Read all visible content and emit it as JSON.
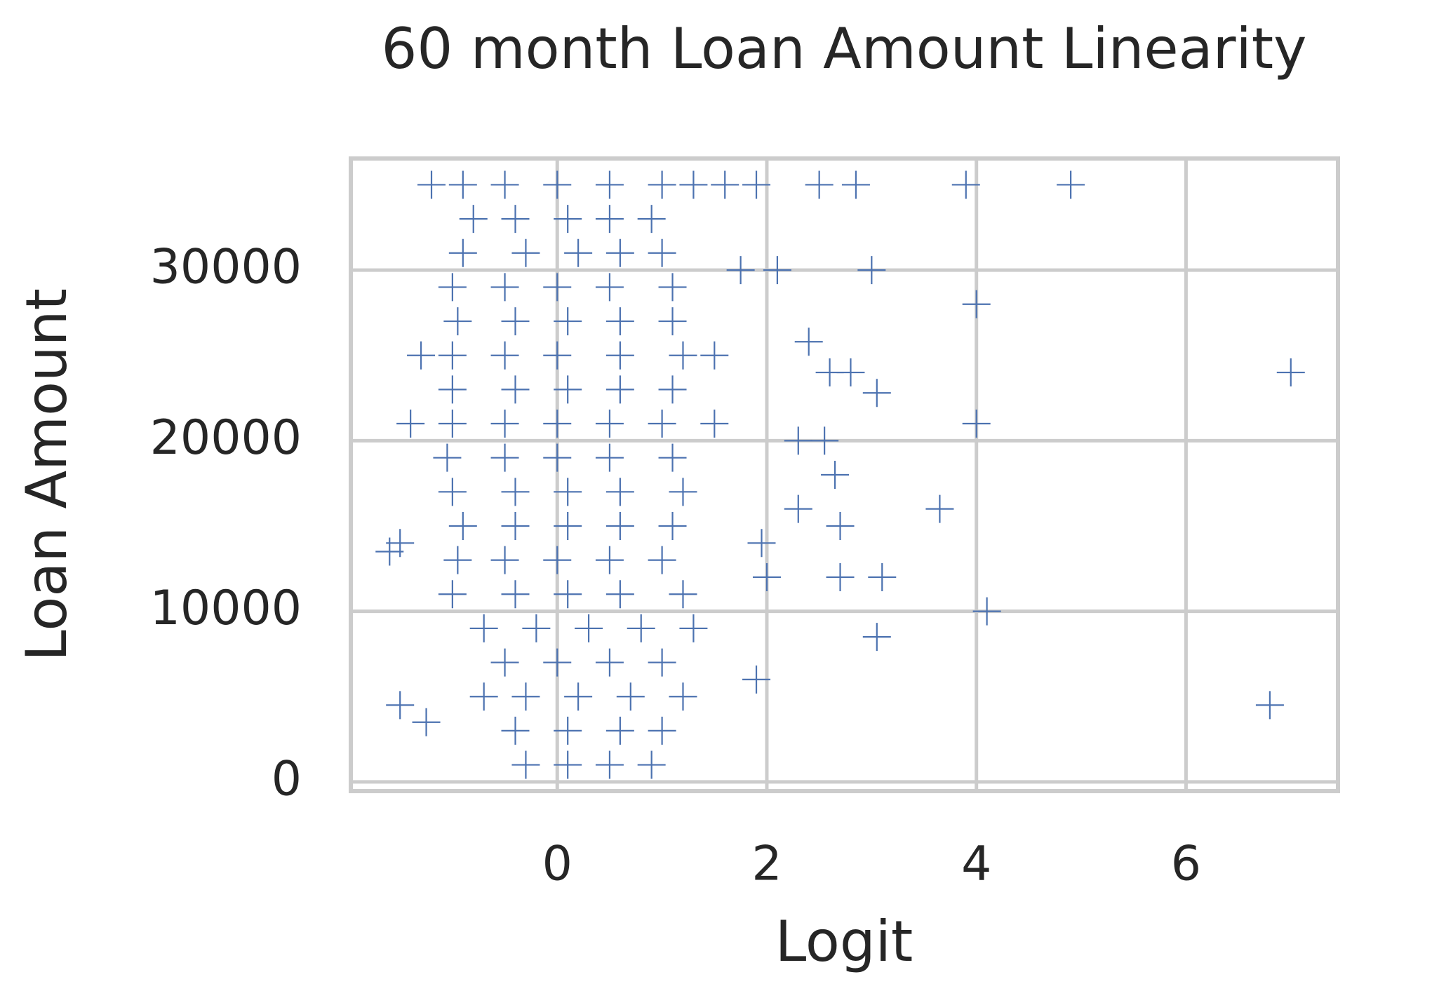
{
  "chart_data": {
    "type": "scatter",
    "title": "60 month Loan Amount Linearity",
    "x_label": "Logit",
    "y_label": "Loan Amount",
    "color": "#4c72b0",
    "marker": "plus",
    "grid": true,
    "xlim": [
      -1.97,
      7.45
    ],
    "ylim": [
      -540,
      36540
    ],
    "xticks": [
      0,
      2,
      4,
      6
    ],
    "yticks": [
      0,
      10000,
      20000,
      30000
    ],
    "x": [
      -0.9,
      -0.5,
      0,
      0.5,
      1.0,
      1.3,
      1.6,
      1.9,
      -0.8,
      -0.4,
      0.1,
      0.5,
      0.9,
      -0.9,
      -0.3,
      0.2,
      0.6,
      1.0,
      -1.0,
      -0.5,
      0,
      0.5,
      1.1,
      -0.95,
      -0.4,
      0.1,
      0.6,
      1.1,
      -1.0,
      -0.5,
      0,
      0.6,
      1.2,
      1.5,
      -1.0,
      -0.4,
      0.1,
      0.6,
      1.1,
      -1.0,
      -0.5,
      0,
      0.5,
      1.0,
      1.5,
      -1.05,
      -0.5,
      0,
      0.5,
      1.1,
      -1.0,
      -0.4,
      0.1,
      0.6,
      1.2,
      -0.9,
      -0.4,
      0.1,
      0.6,
      1.1,
      -0.95,
      -0.5,
      0,
      0.5,
      1.0,
      -1.0,
      -0.4,
      0.1,
      0.6,
      1.2,
      -0.7,
      -0.2,
      0.3,
      0.8,
      1.3,
      -0.5,
      0,
      0.5,
      1.0,
      -0.7,
      -0.3,
      0.2,
      0.7,
      1.2,
      -0.4,
      0.1,
      0.6,
      1.0,
      -0.3,
      0.1,
      0.5,
      0.9,
      4.9,
      3.9,
      7.0,
      6.8,
      4.0,
      4.0,
      3.65,
      4.1,
      3.05,
      3.1,
      2.7,
      2.7,
      2.65,
      3.0,
      3.05,
      2.8,
      2.6,
      2.4,
      2.3,
      2.55,
      2.3,
      2.0,
      1.95,
      1.9,
      1.75,
      2.1,
      2.85,
      2.5,
      -1.5,
      -1.6,
      -1.5,
      -1.2,
      -1.25,
      -1.4,
      -1.3
    ],
    "values": [
      35000,
      35000,
      35000,
      35000,
      35000,
      35000,
      35000,
      35000,
      33000,
      33000,
      33000,
      33000,
      33000,
      31000,
      31000,
      31000,
      31000,
      31000,
      29000,
      29000,
      29000,
      29000,
      29000,
      27000,
      27000,
      27000,
      27000,
      27000,
      25000,
      25000,
      25000,
      25000,
      25000,
      25000,
      23000,
      23000,
      23000,
      23000,
      23000,
      21000,
      21000,
      21000,
      21000,
      21000,
      21000,
      19000,
      19000,
      19000,
      19000,
      19000,
      17000,
      17000,
      17000,
      17000,
      17000,
      15000,
      15000,
      15000,
      15000,
      15000,
      13000,
      13000,
      13000,
      13000,
      13000,
      11000,
      11000,
      11000,
      11000,
      11000,
      9000,
      9000,
      9000,
      9000,
      9000,
      7000,
      7000,
      7000,
      7000,
      5000,
      5000,
      5000,
      5000,
      5000,
      3000,
      3000,
      3000,
      3000,
      1000,
      1000,
      1000,
      1000,
      35000,
      35000,
      24000,
      4500,
      28000,
      21000,
      16000,
      10000,
      8500,
      12000,
      12000,
      15000,
      18000,
      30000,
      22800,
      24000,
      24000,
      25800,
      20000,
      20000,
      16000,
      12000,
      14000,
      6000,
      30000,
      30000,
      35000,
      35000,
      4500,
      13500,
      14000,
      35000,
      3500,
      21000,
      25000
    ]
  }
}
